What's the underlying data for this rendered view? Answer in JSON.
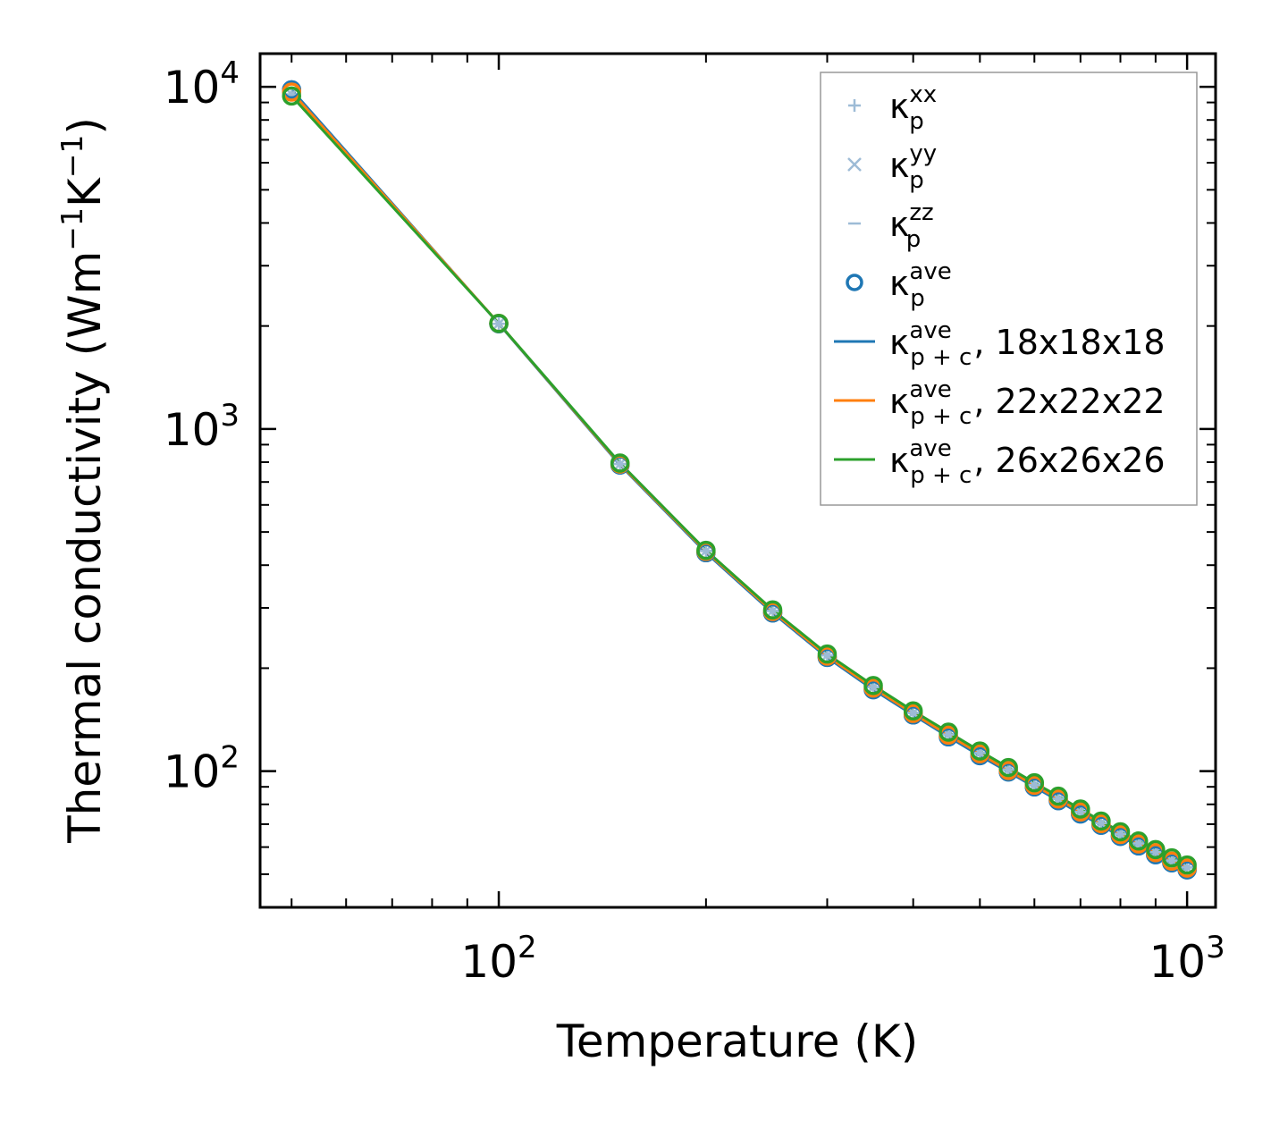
{
  "chart_data": {
    "type": "line",
    "xlabel": "Temperature (K)",
    "ylabel": {
      "base": "Thermal conductivity (Wm",
      "sup1": "−1",
      "mid": "K",
      "sup2": "−1",
      "end": ")"
    },
    "xscale": "log",
    "yscale": "log",
    "xlim": [
      45,
      1100
    ],
    "ylim": [
      40,
      12500
    ],
    "x_major_ticks": [
      {
        "value": 100,
        "base": "10",
        "exp": "2"
      },
      {
        "value": 1000,
        "base": "10",
        "exp": "3"
      }
    ],
    "y_major_ticks": [
      {
        "value": 100,
        "base": "10",
        "exp": "2"
      },
      {
        "value": 1000,
        "base": "10",
        "exp": "3"
      },
      {
        "value": 10000,
        "base": "10",
        "exp": "4"
      }
    ],
    "grid": false,
    "legend_position": "top-right",
    "x": [
      50,
      100,
      150,
      200,
      250,
      300,
      350,
      400,
      450,
      500,
      550,
      600,
      650,
      700,
      750,
      800,
      850,
      900,
      950,
      1000
    ],
    "series": [
      {
        "key": "kxx",
        "marker": "plus",
        "style": "markers",
        "color": "#9dbbd6",
        "legend": {
          "sym": "κ",
          "sup": "xx",
          "sub": "p",
          "suffix": ""
        },
        "values": [
          9500,
          2030,
          790,
          440,
          294,
          218,
          176,
          148,
          128,
          113,
          101,
          91,
          83,
          76,
          70.5,
          65.5,
          61.5,
          58,
          54.8,
          52.3
        ]
      },
      {
        "key": "kyy",
        "marker": "x",
        "style": "markers",
        "color": "#9dbbd6",
        "legend": {
          "sym": "κ",
          "sup": "yy",
          "sub": "p",
          "suffix": ""
        },
        "values": [
          9500,
          2030,
          790,
          440,
          294,
          218,
          176,
          148,
          128,
          113,
          101,
          91,
          83,
          76,
          70.5,
          65.5,
          61.5,
          58,
          54.8,
          52.3
        ]
      },
      {
        "key": "kzz",
        "marker": "hline",
        "style": "markers",
        "color": "#9dbbd6",
        "legend": {
          "sym": "κ",
          "sup": "zz",
          "sub": "p",
          "suffix": ""
        },
        "values": [
          9500,
          2030,
          790,
          440,
          294,
          218,
          176,
          148,
          128,
          113,
          101,
          91,
          83,
          76,
          70.5,
          65.5,
          61.5,
          58,
          54.8,
          52.3
        ]
      },
      {
        "key": "kave",
        "marker": "circle",
        "style": "markers",
        "color": "#1f77b4",
        "legend": {
          "sym": "κ",
          "sup": "ave",
          "sub": "p",
          "suffix": ""
        },
        "values": [
          9800,
          2030,
          785,
          435,
          290,
          215,
          173,
          146,
          126,
          111,
          99.5,
          90,
          82,
          75,
          69.5,
          64.5,
          60.5,
          57,
          54,
          51.5
        ]
      },
      {
        "key": "kpc18",
        "marker": "circle",
        "style": "line+markers",
        "color": "#1f77b4",
        "legend": {
          "sym": "κ",
          "sup": "ave",
          "sub": "p + c",
          "suffix": ", 18x18x18"
        },
        "values": [
          9800,
          2030,
          785,
          435,
          290,
          215,
          173,
          146,
          126,
          111,
          99.5,
          90,
          82,
          75,
          69.5,
          64.5,
          60.5,
          57,
          54,
          51.5
        ]
      },
      {
        "key": "kpc22",
        "marker": "circle",
        "style": "line+markers",
        "color": "#ff7f0e",
        "legend": {
          "sym": "κ",
          "sup": "ave",
          "sub": "p + c",
          "suffix": ", 22x22x22"
        },
        "values": [
          9650,
          2035,
          790,
          439,
          293,
          217,
          175,
          147.5,
          127.5,
          112.5,
          100.5,
          91,
          83,
          76,
          70.3,
          65.3,
          61.3,
          57.8,
          54.6,
          52.1
        ]
      },
      {
        "key": "kpc26",
        "marker": "circle",
        "style": "line+markers",
        "color": "#2ca02c",
        "legend": {
          "sym": "κ",
          "sup": "ave",
          "sub": "p + c",
          "suffix": ", 26x26x26"
        },
        "values": [
          9400,
          2035,
          795,
          442,
          296,
          220,
          178,
          150,
          130,
          114.5,
          102.5,
          92.5,
          84.5,
          77.5,
          71.5,
          66.5,
          62.5,
          59,
          55.8,
          53.2
        ]
      }
    ]
  }
}
